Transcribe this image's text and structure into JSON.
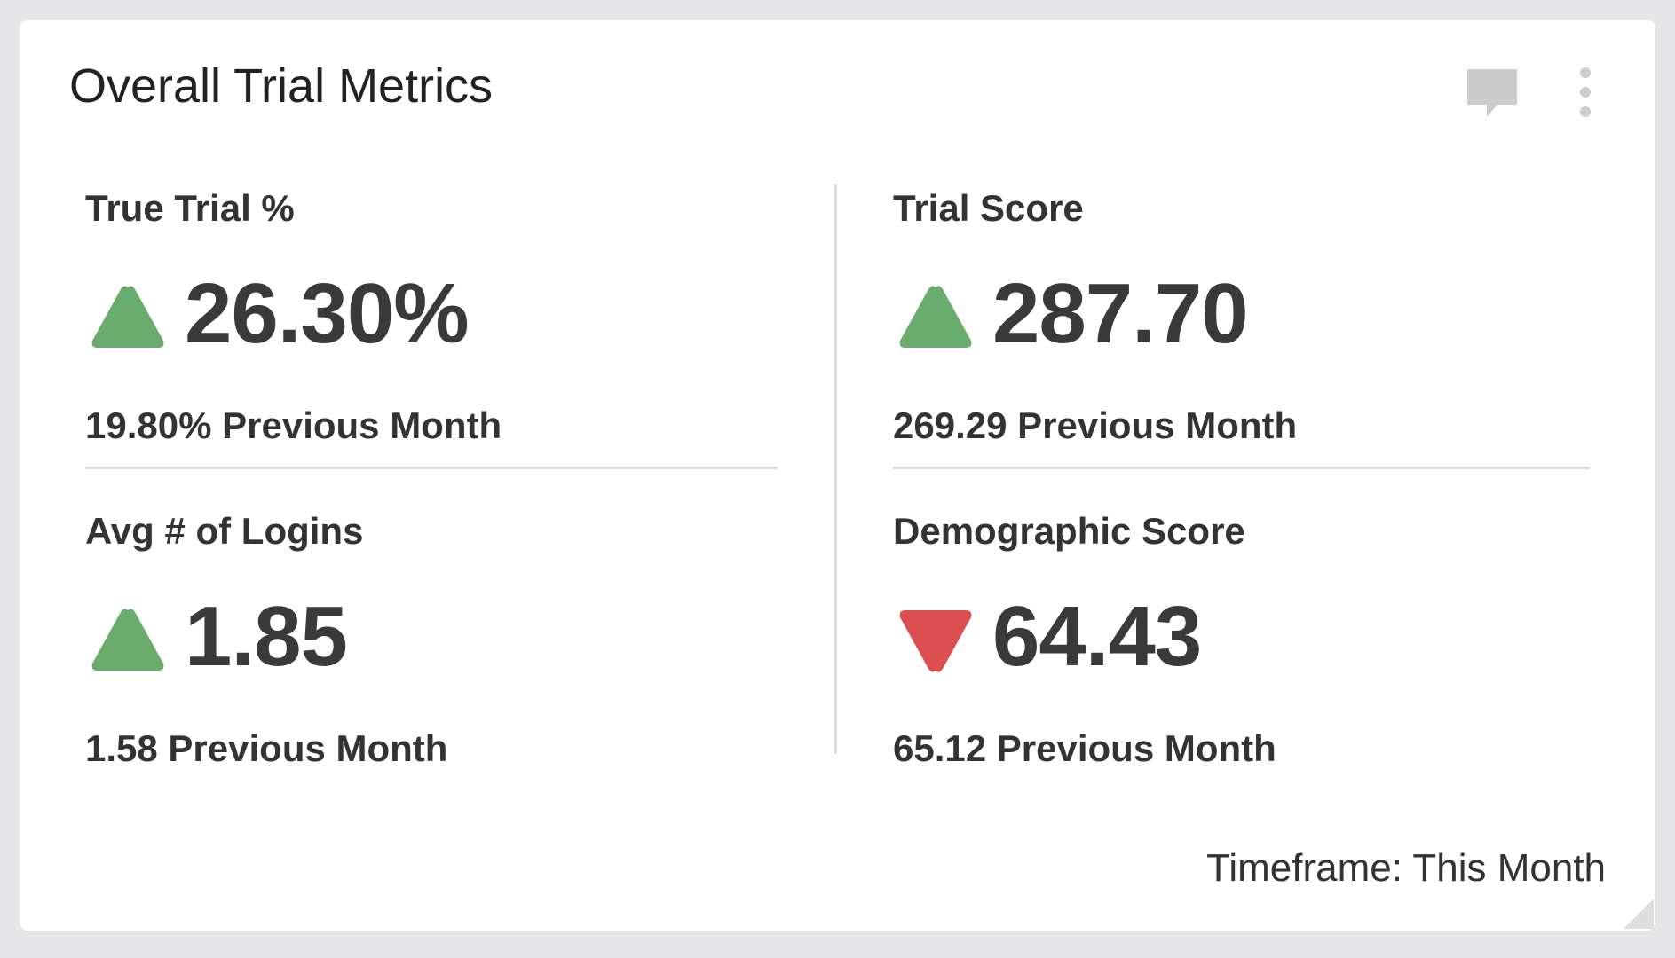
{
  "header": {
    "title": "Overall Trial Metrics"
  },
  "metrics": [
    {
      "label": "True Trial %",
      "value": "26.30%",
      "previous": "19.80% Previous Month",
      "trend": "up"
    },
    {
      "label": "Trial Score",
      "value": "287.70",
      "previous": "269.29 Previous Month",
      "trend": "up"
    },
    {
      "label": "Avg # of Logins",
      "value": "1.85",
      "previous": "1.58 Previous Month",
      "trend": "up"
    },
    {
      "label": "Demographic Score",
      "value": "64.43",
      "previous": "65.12 Previous Month",
      "trend": "down"
    }
  ],
  "trend_colors": {
    "up": "#6aab6e",
    "down": "#dc4e4f"
  },
  "footer": {
    "timeframe": "Timeframe: This Month"
  }
}
